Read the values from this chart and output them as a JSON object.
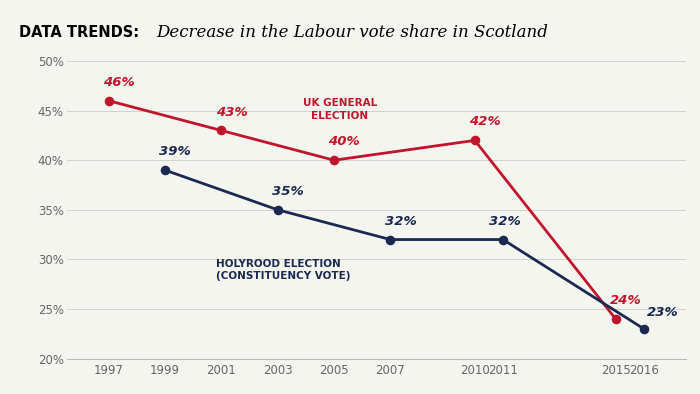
{
  "title_label": "DATA TRENDS:",
  "title_text": "Decrease in the Labour vote share in Scotland",
  "uk_election_x": [
    1997,
    2001,
    2005,
    2010,
    2015
  ],
  "uk_election_y": [
    46,
    43,
    40,
    42,
    24
  ],
  "uk_election_labels": [
    "46%",
    "43%",
    "40%",
    "42%",
    "24%"
  ],
  "uk_election_color": "#c0152a",
  "holyrood_x": [
    1999,
    2003,
    2007,
    2011,
    2016
  ],
  "holyrood_y": [
    39,
    35,
    32,
    32,
    23
  ],
  "holyrood_labels": [
    "39%",
    "35%",
    "32%",
    "32%",
    "23%"
  ],
  "holyrood_color": "#1a2952",
  "ylim": [
    20,
    50
  ],
  "yticks": [
    20,
    25,
    30,
    35,
    40,
    45,
    50
  ],
  "ytick_labels": [
    "20%",
    "25%",
    "30%",
    "35%",
    "40%",
    "45%",
    "50%"
  ],
  "xticks": [
    1997,
    1999,
    2001,
    2003,
    2005,
    2007,
    2010,
    2011,
    2015,
    2016
  ],
  "xlim": [
    1995.5,
    2017.5
  ],
  "bg_color": "#f5f5f0",
  "yellow_color": "#f5d800",
  "annotation_uk": "UK GENERAL\nELECTION",
  "annotation_holyrood": "HOLYROOD ELECTION\n(CONSTITUENCY VOTE)",
  "uk_label_dx": [
    -0.2,
    -0.2,
    -0.2,
    -0.2,
    -0.2
  ],
  "uk_label_dy": [
    1.2,
    1.2,
    1.2,
    1.2,
    1.2
  ],
  "hol_label_dx": [
    -0.2,
    -0.2,
    -0.2,
    -0.5,
    0.1
  ],
  "hol_label_dy": [
    1.2,
    1.2,
    1.2,
    1.2,
    1.0
  ]
}
